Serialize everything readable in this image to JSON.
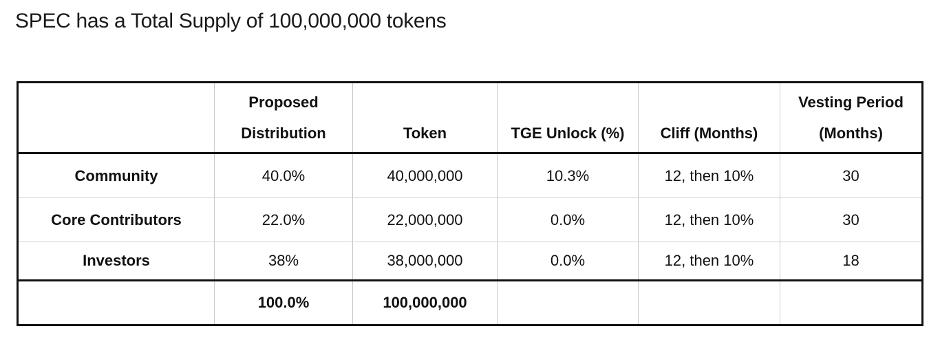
{
  "title": "SPEC has a Total Supply of 100,000,000 tokens",
  "table": {
    "headers": [
      {
        "lines": [
          "",
          ""
        ]
      },
      {
        "lines": [
          "Proposed",
          "Distribution"
        ]
      },
      {
        "lines": [
          "",
          "Token"
        ]
      },
      {
        "lines": [
          "",
          "TGE Unlock (%)"
        ]
      },
      {
        "lines": [
          "",
          "Cliff (Months)"
        ]
      },
      {
        "lines": [
          "Vesting Period",
          "(Months)"
        ]
      }
    ],
    "rows": [
      {
        "label": "Community",
        "distribution": "40.0%",
        "token": "40,000,000",
        "tge": "10.3%",
        "cliff": "12, then 10%",
        "vesting": "30"
      },
      {
        "label": "Core Contributors",
        "distribution": "22.0%",
        "token": "22,000,000",
        "tge": "0.0%",
        "cliff": "12, then 10%",
        "vesting": "30"
      },
      {
        "label": "Investors",
        "distribution": "38%",
        "token": "38,000,000",
        "tge": "0.0%",
        "cliff": "12, then 10%",
        "vesting": "18"
      }
    ],
    "total": {
      "label": "",
      "distribution": "100.0%",
      "token": "100,000,000",
      "tge": "",
      "cliff": "",
      "vesting": ""
    }
  }
}
